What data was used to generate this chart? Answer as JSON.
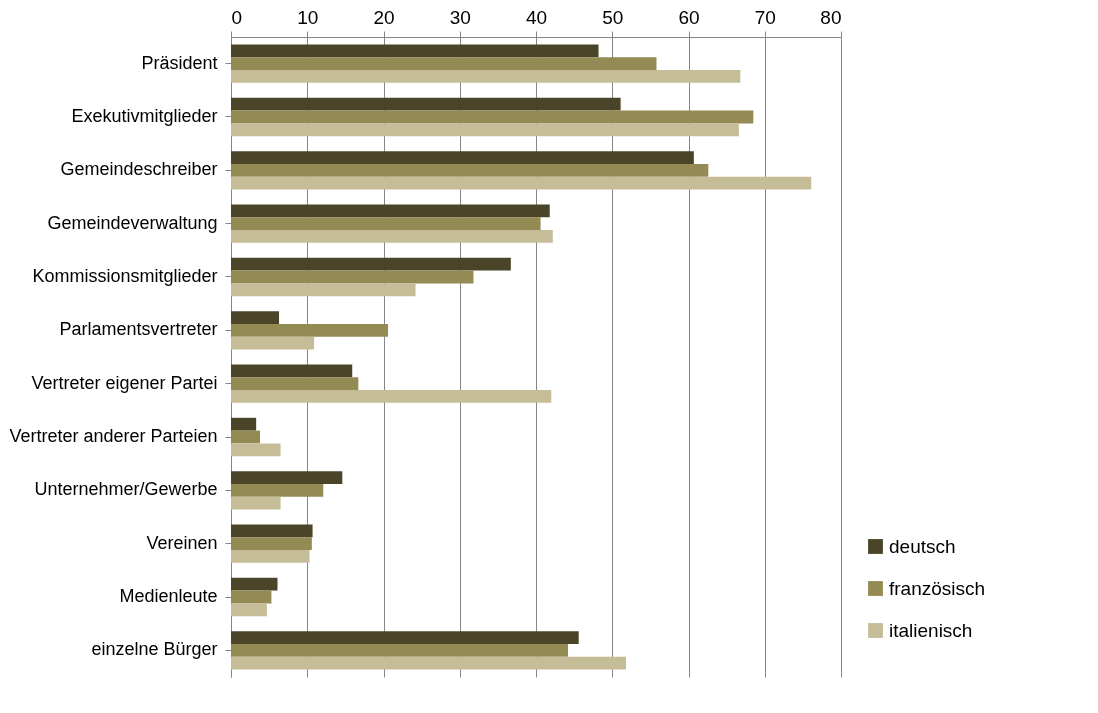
{
  "chart_data": {
    "type": "bar",
    "orientation": "horizontal",
    "categories": [
      "Präsident",
      "Exekutivmitglieder",
      "Gemeindeschreiber",
      "Gemeindeverwaltung",
      "Kommissionsmitglieder",
      "Parlamentsvertreter",
      "Vertreter eigener Partei",
      "Vertreter anderer Parteien",
      "Unternehmer/Gewerbe",
      "Vereinen",
      "Medienleute",
      "einzelne Bürger"
    ],
    "series": [
      {
        "name": "deutsch",
        "color": "#4a4528",
        "values": [
          48.2,
          51.1,
          60.7,
          41.8,
          36.7,
          6.3,
          15.9,
          3.3,
          14.6,
          10.7,
          6.1,
          45.6
        ]
      },
      {
        "name": "französisch",
        "color": "#948a54",
        "values": [
          55.8,
          68.5,
          62.6,
          40.6,
          31.8,
          20.6,
          16.7,
          3.8,
          12.1,
          10.6,
          5.3,
          44.2
        ]
      },
      {
        "name": "italienisch",
        "color": "#c4bd97",
        "values": [
          66.8,
          66.6,
          76.1,
          42.2,
          24.2,
          10.9,
          42.0,
          6.5,
          6.5,
          10.3,
          4.7,
          51.8
        ]
      }
    ],
    "xlim": [
      0,
      80
    ],
    "xticks": [
      0,
      10,
      20,
      30,
      40,
      50,
      60,
      70,
      80
    ],
    "grid": "x",
    "legend": "bottom right"
  }
}
